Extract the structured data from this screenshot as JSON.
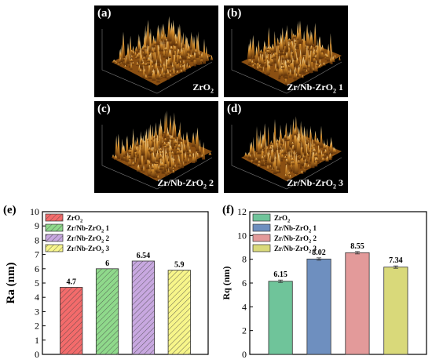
{
  "panels": [
    {
      "label": "(a)",
      "caption": "ZrO",
      "sub": "2",
      "tail": ""
    },
    {
      "label": "(b)",
      "caption": "Zr/Nb-ZrO",
      "sub": "2",
      "tail": " 1"
    },
    {
      "label": "(c)",
      "caption": "Zr/Nb-ZrO",
      "sub": "2",
      "tail": " 2"
    },
    {
      "label": "(d)",
      "caption": "Zr/Nb-ZrO",
      "sub": "2",
      "tail": " 3"
    }
  ],
  "chart_data": [
    {
      "panel_label": "(e)",
      "type": "bar",
      "ylabel": "Ra (nm)",
      "ylim": [
        0,
        10
      ],
      "yticks": [
        0,
        1,
        2,
        3,
        4,
        5,
        6,
        7,
        8,
        9,
        10
      ],
      "categories": [
        "ZrO2",
        "Zr/Nb-ZrO2 1",
        "Zr/Nb-ZrO2 2",
        "Zr/Nb-ZrO2 3"
      ],
      "values": [
        4.7,
        6,
        6.54,
        5.9
      ],
      "value_labels": [
        "4.7",
        "6",
        "6.54",
        "5.9"
      ],
      "colors": [
        "#f36b6b",
        "#8fd98b",
        "#c8a8e0",
        "#f7f58a"
      ],
      "hatched": true,
      "legend": "top-left",
      "legend_entries": [
        {
          "name": "ZrO",
          "sub": "2",
          "tail": ""
        },
        {
          "name": "Zr/Nb-ZrO",
          "sub": "2",
          "tail": " 1"
        },
        {
          "name": "Zr/Nb-ZrO",
          "sub": "2",
          "tail": " 2"
        },
        {
          "name": "Zr/Nb-ZrO",
          "sub": "2",
          "tail": " 3"
        }
      ]
    },
    {
      "panel_label": "(f)",
      "type": "bar",
      "ylabel": "Rq (nm)",
      "ylim": [
        0,
        12
      ],
      "yticks": [
        0,
        2,
        4,
        6,
        8,
        10,
        12
      ],
      "categories": [
        "ZrO2",
        "Zr/Nb-ZrO2 1",
        "Zr/Nb-ZrO2 2",
        "Zr/Nb-ZrO2 3"
      ],
      "values": [
        6.15,
        8.02,
        8.55,
        7.34
      ],
      "errors": [
        0.1,
        0.1,
        0.1,
        0.1
      ],
      "value_labels": [
        "6.15",
        "8.02",
        "8.55",
        "7.34"
      ],
      "colors": [
        "#6fc49a",
        "#6e8fbf",
        "#e39a9a",
        "#d9d97a"
      ],
      "hatched": false,
      "legend": "top-left",
      "legend_entries": [
        {
          "name": "ZrO",
          "sub": "2",
          "tail": ""
        },
        {
          "name": "Zr/Nb-ZrO",
          "sub": "2",
          "tail": " 1"
        },
        {
          "name": "Zr/Nb-ZrO",
          "sub": "2",
          "tail": " 2"
        },
        {
          "name": "Zr/Nb-ZrO",
          "sub": "2",
          "tail": " 3"
        }
      ]
    }
  ]
}
